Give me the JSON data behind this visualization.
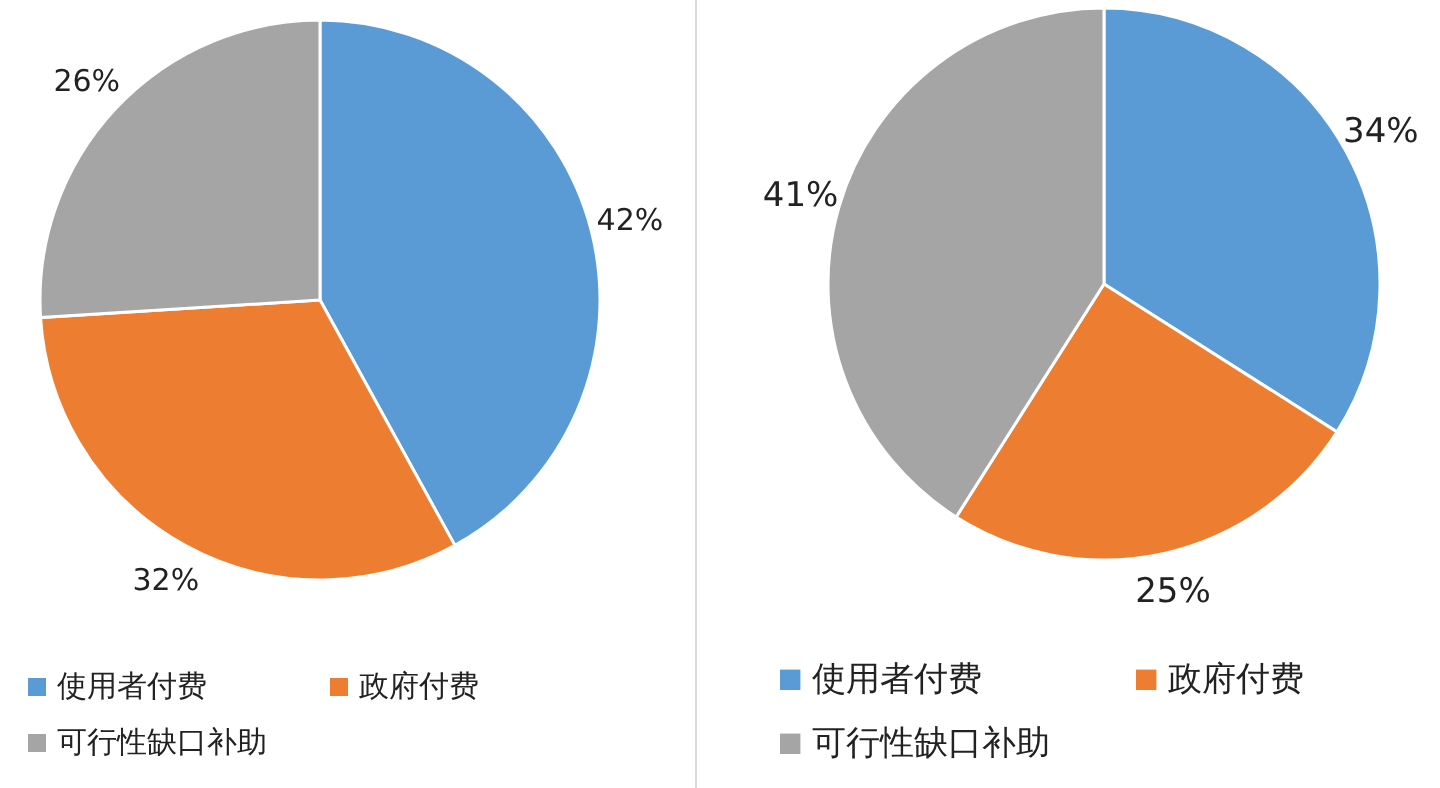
{
  "chart_data": [
    {
      "type": "pie",
      "categories": [
        "使用者付费",
        "政府付费",
        "可行性缺口补助"
      ],
      "values": [
        42,
        32,
        26
      ],
      "value_labels": [
        "42%",
        "32%",
        "26%"
      ],
      "colors": [
        "#5b9bd5",
        "#ed7d31",
        "#a5a5a5"
      ],
      "legend": "bottom"
    },
    {
      "type": "pie",
      "categories": [
        "使用者付费",
        "政府付费",
        "可行性缺口补助"
      ],
      "values": [
        34,
        25,
        41
      ],
      "value_labels": [
        "34%",
        "25%",
        "41%"
      ],
      "colors": [
        "#5b9bd5",
        "#ed7d31",
        "#a5a5a5"
      ],
      "legend": "bottom"
    }
  ]
}
